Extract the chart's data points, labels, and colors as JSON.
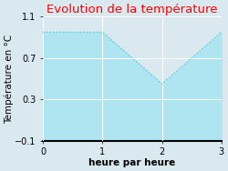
{
  "title": "Evolution de la température",
  "title_color": "#ff0000",
  "xlabel": "heure par heure",
  "ylabel": "Température en °C",
  "x": [
    0,
    1,
    2,
    3
  ],
  "y": [
    0.95,
    0.95,
    0.45,
    0.95
  ],
  "ylim": [
    -0.1,
    1.1
  ],
  "xlim": [
    0,
    3
  ],
  "yticks": [
    -0.1,
    0.3,
    0.7,
    1.1
  ],
  "xticks": [
    0,
    1,
    2,
    3
  ],
  "line_color": "#5bc8d8",
  "fill_color": "#aee5f0",
  "bg_color": "#dae8f0",
  "plot_bg_color": "#dae8f0",
  "title_fontsize": 9.5,
  "label_fontsize": 7.5,
  "tick_fontsize": 7
}
